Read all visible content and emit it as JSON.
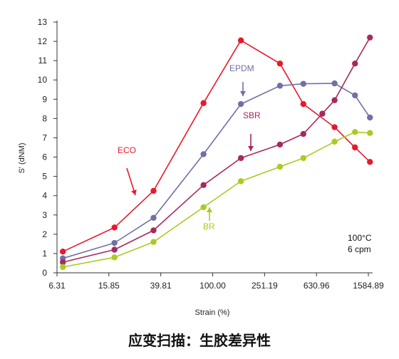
{
  "chart_data": {
    "type": "line",
    "xlabel": "Strain (%)",
    "ylabel": "S' (dNM)",
    "x_scale": "log",
    "x_ticks": [
      "6.31",
      "15.85",
      "39.81",
      "100.00",
      "251.19",
      "630.96",
      "1584.89"
    ],
    "x_tick_values": [
      6.31,
      15.85,
      39.81,
      100.0,
      251.19,
      630.96,
      1584.89
    ],
    "xlim": [
      6.31,
      1584.89
    ],
    "ylim": [
      0,
      13
    ],
    "y_ticks": [
      "0",
      "1",
      "2",
      "3",
      "4",
      "5",
      "6",
      "7",
      "8",
      "9",
      "10",
      "11",
      "12",
      "13"
    ],
    "grid": false,
    "series": [
      {
        "name": "ECO",
        "color": "#e8192c",
        "x": [
          7,
          17.5,
          35,
          85,
          165,
          330,
          500,
          870,
          1250,
          1630
        ],
        "y": [
          1.1,
          2.35,
          4.25,
          8.8,
          12.05,
          10.85,
          8.75,
          7.55,
          6.5,
          5.75
        ]
      },
      {
        "name": "EPDM",
        "color": "#7070a8",
        "x": [
          7,
          17.5,
          35,
          85,
          165,
          330,
          500,
          870,
          1250,
          1630
        ],
        "y": [
          0.75,
          1.55,
          2.85,
          6.15,
          8.75,
          9.7,
          9.8,
          9.82,
          9.2,
          8.05
        ]
      },
      {
        "name": "SBR",
        "color": "#a52a5e",
        "x": [
          7,
          17.5,
          35,
          85,
          165,
          330,
          500,
          700,
          870,
          1250,
          1630
        ],
        "y": [
          0.55,
          1.2,
          2.2,
          4.55,
          5.95,
          6.65,
          7.2,
          8.25,
          8.95,
          10.85,
          12.2
        ]
      },
      {
        "name": "BR",
        "color": "#a8cc22",
        "x": [
          7,
          17.5,
          35,
          85,
          165,
          330,
          500,
          870,
          1250,
          1630
        ],
        "y": [
          0.3,
          0.8,
          1.6,
          3.4,
          4.75,
          5.5,
          5.95,
          6.8,
          7.3,
          7.25
        ]
      }
    ],
    "annotations": [
      "100°C",
      "6 cpm"
    ],
    "caption": "应变扫描：生胶差异性"
  }
}
